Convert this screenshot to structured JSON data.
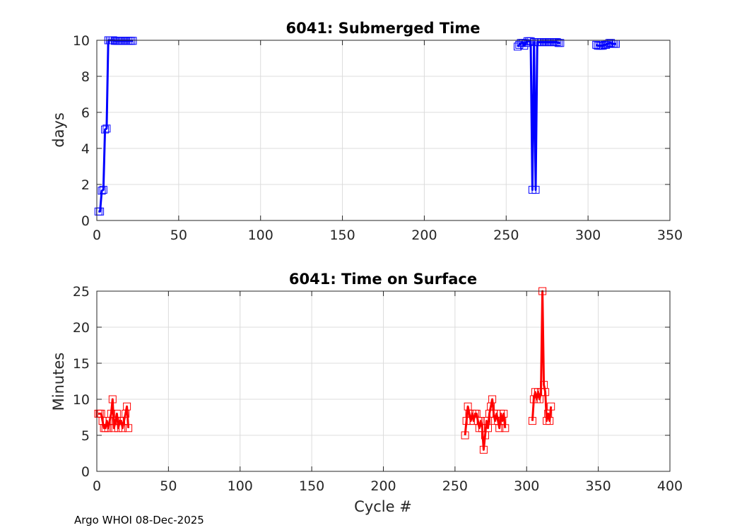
{
  "footer": {
    "text": "Argo WHOI 08-Dec-2025"
  },
  "chart_data": [
    {
      "type": "line",
      "title": "6041: Submerged Time",
      "xlabel": "",
      "ylabel": "days",
      "xlim": [
        0,
        350
      ],
      "ylim": [
        0,
        10
      ],
      "xticks": [
        0,
        50,
        100,
        150,
        200,
        250,
        300,
        350
      ],
      "yticks": [
        0,
        2,
        4,
        6,
        8,
        10
      ],
      "grid": true,
      "color": "#0000ff",
      "marker": "square",
      "series": [
        {
          "name": "Submerged Time",
          "x": [
            1,
            2,
            3,
            4,
            5,
            6,
            7,
            8,
            9,
            10,
            11,
            12,
            13,
            14,
            15,
            16,
            17,
            18,
            19,
            20,
            21,
            22
          ],
          "y": [
            0.5,
            0.5,
            1.65,
            1.7,
            5.05,
            5.1,
            10.0,
            10.0,
            10.0,
            10.0,
            9.97,
            9.97,
            9.97,
            9.97,
            9.97,
            9.97,
            9.97,
            9.97,
            9.97,
            9.97,
            9.97,
            9.97
          ]
        },
        {
          "name": "Submerged Time",
          "x": [
            257,
            258,
            259,
            260,
            261,
            262,
            263,
            264,
            265,
            266,
            267,
            268,
            269,
            270,
            271,
            272,
            273,
            274,
            275,
            276,
            277,
            278,
            279,
            280,
            281,
            282,
            283
          ],
          "y": [
            9.65,
            9.75,
            9.85,
            9.85,
            9.7,
            9.85,
            9.95,
            9.95,
            9.95,
            1.7,
            9.9,
            1.7,
            9.9,
            9.9,
            9.9,
            9.9,
            9.9,
            9.9,
            9.9,
            9.9,
            9.9,
            9.9,
            9.9,
            9.9,
            9.9,
            9.85,
            9.85
          ]
        },
        {
          "name": "Submerged Time",
          "x": [
            305,
            306,
            307,
            308,
            309,
            310,
            311,
            312,
            313,
            314,
            315,
            316,
            317
          ],
          "y": [
            9.75,
            9.7,
            9.7,
            9.7,
            9.7,
            9.75,
            9.75,
            9.8,
            9.85,
            9.85,
            9.8,
            9.8,
            9.8
          ]
        }
      ]
    },
    {
      "type": "line",
      "title": "6041: Time on Surface",
      "xlabel": "Cycle #",
      "ylabel": "Minutes",
      "xlim": [
        0,
        400
      ],
      "ylim": [
        0,
        25
      ],
      "xticks": [
        0,
        50,
        100,
        150,
        200,
        250,
        300,
        350,
        400
      ],
      "yticks": [
        0,
        5,
        10,
        15,
        20,
        25
      ],
      "grid": true,
      "color": "#ff0000",
      "marker": "square",
      "series": [
        {
          "name": "Time on Surface",
          "x": [
            1,
            2,
            3,
            4,
            5,
            6,
            7,
            8,
            9,
            10,
            11,
            12,
            13,
            14,
            15,
            16,
            17,
            18,
            19,
            20,
            21,
            22
          ],
          "y": [
            8,
            8,
            8,
            7,
            6,
            6,
            7,
            6,
            7,
            8,
            10,
            6,
            7,
            8,
            6,
            7,
            7,
            6,
            7,
            8,
            9,
            6
          ]
        },
        {
          "name": "Time on Surface",
          "x": [
            257,
            258,
            259,
            260,
            261,
            262,
            263,
            264,
            265,
            266,
            267,
            268,
            269,
            270,
            271,
            272,
            273,
            274,
            275,
            276,
            277,
            278,
            279,
            280,
            281,
            282,
            283,
            284,
            285
          ],
          "y": [
            5,
            7,
            9,
            8,
            7,
            8,
            7,
            8,
            8,
            7,
            6,
            7,
            6,
            3,
            5,
            7,
            6,
            8,
            9,
            10,
            8,
            7,
            8,
            7,
            6,
            8,
            7,
            8,
            6
          ]
        },
        {
          "name": "Time on Surface",
          "x": [
            304,
            305,
            306,
            307,
            308,
            309,
            310,
            311,
            312,
            313,
            314,
            315,
            316,
            317
          ],
          "y": [
            7,
            10,
            11,
            10,
            11,
            10,
            11,
            25,
            12,
            11,
            7,
            8,
            7,
            9
          ]
        }
      ]
    }
  ]
}
